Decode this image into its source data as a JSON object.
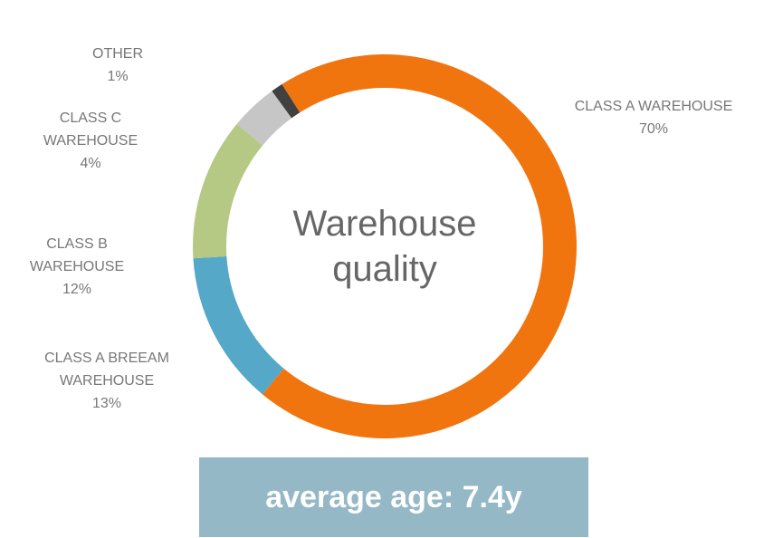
{
  "chart_data": {
    "type": "donut",
    "title": "Warehouse quality",
    "categories": [
      "CLASS A WAREHOUSE",
      "CLASS A BREEAM WAREHOUSE",
      "CLASS B WAREHOUSE",
      "CLASS C WAREHOUSE",
      "OTHER"
    ],
    "values": [
      70,
      13,
      12,
      4,
      1
    ],
    "value_labels": [
      "70%",
      "13%",
      "12%",
      "4%",
      "1%"
    ],
    "colors": [
      "#f0750f",
      "#56a8c8",
      "#b5c985",
      "#c6c6c6",
      "#404040"
    ],
    "footer": "average age: 7.4y"
  }
}
